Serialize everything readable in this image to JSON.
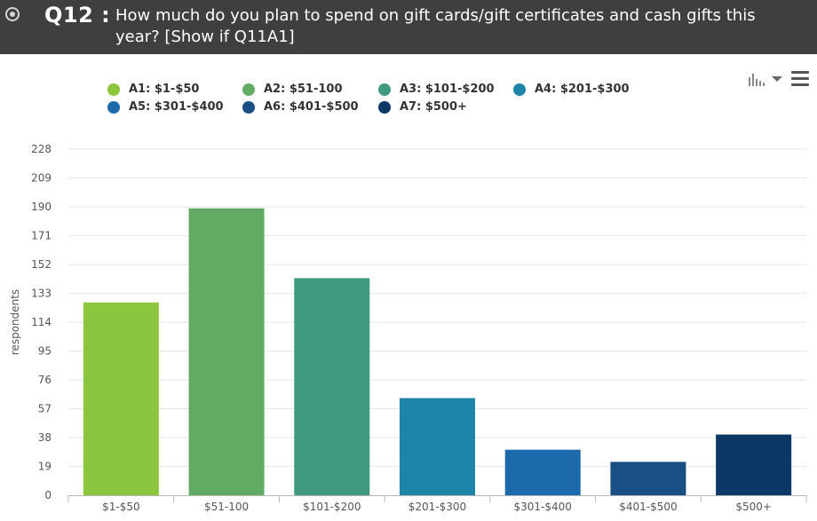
{
  "header": {
    "question_number": "Q12 :",
    "question_text": "How much do you plan to spend on gift cards/gift certificates and cash gifts this year? [Show if Q11A1]"
  },
  "chart_data": {
    "type": "bar",
    "categories": [
      "$1-$50",
      "$51-100",
      "$101-$200",
      "$201-$300",
      "$301-$400",
      "$401-$500",
      "$500+"
    ],
    "values": [
      127,
      189,
      143,
      64,
      30,
      22,
      40
    ],
    "colors": [
      "#8cc63f",
      "#62ab65",
      "#3f9a81",
      "#1f85a8",
      "#1c6aab",
      "#1a4f86",
      "#0d3866"
    ],
    "legend": [
      {
        "label": "A1: $1-$50",
        "color": "#8cc63f"
      },
      {
        "label": "A2: $51-100",
        "color": "#62ab65"
      },
      {
        "label": "A3: $101-$200",
        "color": "#3f9a81"
      },
      {
        "label": "A4: $201-$300",
        "color": "#1f85a8"
      },
      {
        "label": "A5: $301-$400",
        "color": "#1c6aab"
      },
      {
        "label": "A6: $401-$500",
        "color": "#1a4f86"
      },
      {
        "label": "A7: $500+",
        "color": "#0d3866"
      }
    ],
    "ylabel": "respondents",
    "xlabel": "",
    "ylim": [
      0,
      228
    ],
    "yticks": [
      0,
      19,
      38,
      57,
      76,
      95,
      114,
      133,
      152,
      171,
      190,
      209,
      228
    ],
    "grid": true,
    "legend_position": "top"
  }
}
